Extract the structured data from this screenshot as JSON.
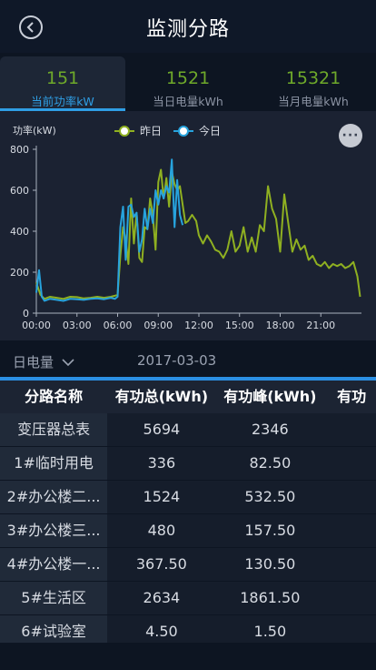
{
  "header": {
    "title": "监测分路"
  },
  "tabs": [
    {
      "value": "151",
      "label": "当前功率kW"
    },
    {
      "value": "1521",
      "label": "当日电量kWh"
    },
    {
      "value": "15321",
      "label": "当月电量kWh"
    }
  ],
  "chart_data": {
    "type": "line",
    "ylabel": "功率(kW)",
    "ylim": [
      0,
      800
    ],
    "yticks": [
      0,
      200,
      400,
      600,
      800
    ],
    "xlim": [
      0,
      24
    ],
    "xticks": [
      "00:00",
      "03:00",
      "06:00",
      "09:00",
      "12:00",
      "15:00",
      "18:00",
      "21:00"
    ],
    "legend": [
      "昨日",
      "今日"
    ],
    "colors": {
      "昨日": "#8fb021",
      "今日": "#27a3dd"
    },
    "series": [
      {
        "name": "昨日",
        "x": [
          0,
          0.3,
          0.6,
          1,
          1.5,
          2,
          2.5,
          3,
          3.5,
          4,
          4.5,
          5,
          5.5,
          5.8,
          6,
          6.2,
          6.4,
          6.6,
          6.8,
          7,
          7.2,
          7.4,
          7.6,
          7.8,
          8,
          8.2,
          8.4,
          8.6,
          8.8,
          9,
          9.2,
          9.4,
          9.6,
          9.8,
          10,
          10.2,
          10.4,
          10.6,
          10.8,
          11,
          11.2,
          11.5,
          11.8,
          12,
          12.3,
          12.6,
          12.9,
          13.2,
          13.5,
          13.8,
          14.1,
          14.4,
          14.7,
          15,
          15.3,
          15.6,
          15.9,
          16.2,
          16.5,
          16.8,
          17.1,
          17.4,
          17.7,
          18,
          18.3,
          18.6,
          18.9,
          19.2,
          19.5,
          19.8,
          20.1,
          20.4,
          20.7,
          21,
          21.3,
          21.6,
          21.9,
          22.2,
          22.5,
          22.8,
          23.1,
          23.4,
          23.7,
          23.9
        ],
        "values": [
          150,
          90,
          70,
          80,
          75,
          70,
          80,
          78,
          72,
          75,
          80,
          75,
          80,
          85,
          90,
          280,
          420,
          360,
          240,
          560,
          340,
          490,
          270,
          250,
          420,
          410,
          560,
          480,
          310,
          640,
          700,
          560,
          660,
          520,
          690,
          630,
          600,
          620,
          530,
          440,
          450,
          480,
          450,
          380,
          340,
          380,
          350,
          310,
          300,
          270,
          310,
          400,
          300,
          330,
          420,
          300,
          370,
          300,
          430,
          400,
          620,
          510,
          460,
          300,
          580,
          440,
          300,
          360,
          310,
          330,
          260,
          280,
          240,
          230,
          250,
          220,
          240,
          230,
          240,
          220,
          230,
          250,
          180,
          80
        ]
      },
      {
        "name": "今日",
        "x": [
          0,
          0.2,
          0.4,
          0.6,
          1,
          1.5,
          2,
          2.5,
          3,
          3.5,
          4,
          4.5,
          5,
          5.5,
          5.8,
          6,
          6.2,
          6.4,
          6.6,
          6.8,
          7,
          7.2,
          7.4,
          7.6,
          7.8,
          8,
          8.2,
          8.4,
          8.6,
          8.8,
          9,
          9.2,
          9.4,
          9.6,
          9.8,
          10,
          10.2,
          10.4,
          10.6,
          10.8
        ],
        "values": [
          100,
          210,
          80,
          60,
          70,
          65,
          60,
          70,
          68,
          65,
          70,
          72,
          68,
          75,
          70,
          80,
          420,
          520,
          260,
          520,
          530,
          470,
          490,
          300,
          360,
          510,
          410,
          510,
          440,
          600,
          530,
          600,
          560,
          620,
          590,
          750,
          420,
          650,
          480,
          430
        ]
      }
    ]
  },
  "filter": {
    "period": "日电量",
    "date": "2017-03-03"
  },
  "table": {
    "headers": [
      "分路名称",
      "有功总(kWh)",
      "有功峰(kWh)",
      "有功"
    ],
    "rows": [
      [
        "变压器总表",
        "5694",
        "2346",
        ""
      ],
      [
        "1#临时用电",
        "336",
        "82.50",
        ""
      ],
      [
        "2#办公楼二...",
        "1524",
        "532.50",
        ""
      ],
      [
        "3#办公楼三...",
        "480",
        "157.50",
        ""
      ],
      [
        "4#办公楼一...",
        "367.50",
        "130.50",
        ""
      ],
      [
        "5#生活区",
        "2634",
        "1861.50",
        ""
      ],
      [
        "6#试验室",
        "4.50",
        "1.50",
        ""
      ]
    ]
  }
}
